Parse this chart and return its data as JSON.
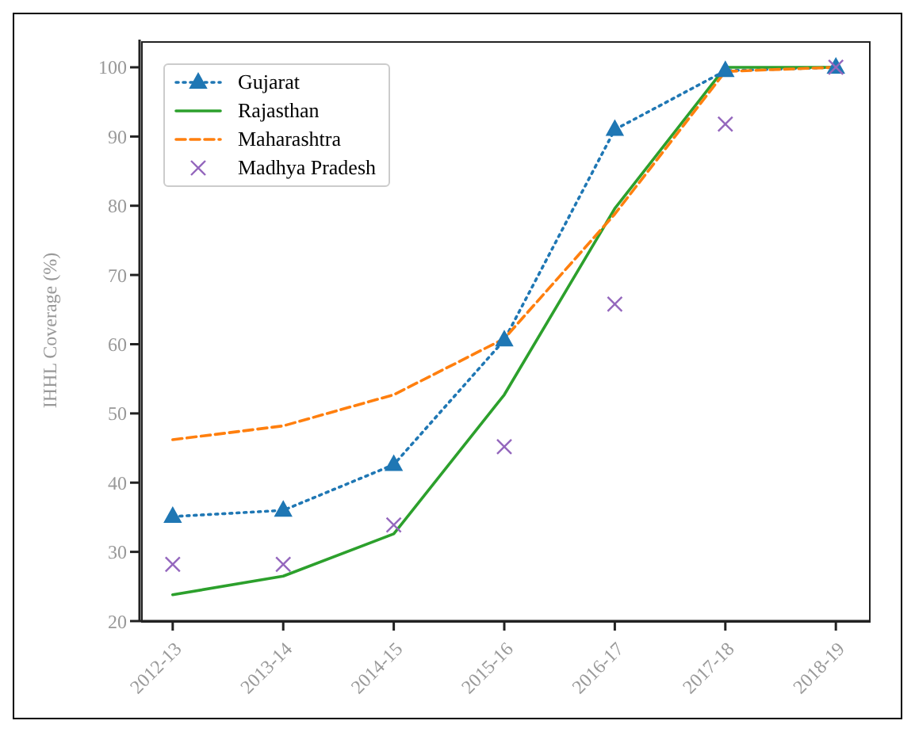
{
  "chart_data": {
    "type": "line",
    "ylabel": "IHHL Coverage (%)",
    "categories": [
      "2012-13",
      "2013-14",
      "2014-15",
      "2015-16",
      "2016-17",
      "2017-18",
      "2018-19"
    ],
    "series": [
      {
        "name": "Gujarat",
        "color": "#1f77b4",
        "marker": "triangle",
        "line_style": "dotted",
        "values": [
          35.1,
          36.0,
          42.6,
          60.6,
          91.0,
          99.5,
          100
        ]
      },
      {
        "name": "Rajasthan",
        "color": "#2ca02c",
        "marker": "none",
        "line_style": "solid",
        "values": [
          23.8,
          26.5,
          32.6,
          52.7,
          79.6,
          100,
          100
        ]
      },
      {
        "name": "Maharashtra",
        "color": "#ff7f0e",
        "marker": "none",
        "line_style": "dashed",
        "values": [
          46.2,
          48.2,
          52.7,
          60.8,
          78.8,
          99.4,
          100
        ]
      },
      {
        "name": "Madhya Pradesh",
        "color": "#9467bd",
        "type": "scatter",
        "marker": "cross",
        "values": [
          28.2,
          28.2,
          33.9,
          45.2,
          65.8,
          91.8,
          100
        ]
      }
    ],
    "ylim": [
      20,
      104
    ],
    "yticks": [
      20,
      30,
      40,
      50,
      60,
      70,
      80,
      90,
      100
    ],
    "grid": false,
    "legend": "top left"
  }
}
